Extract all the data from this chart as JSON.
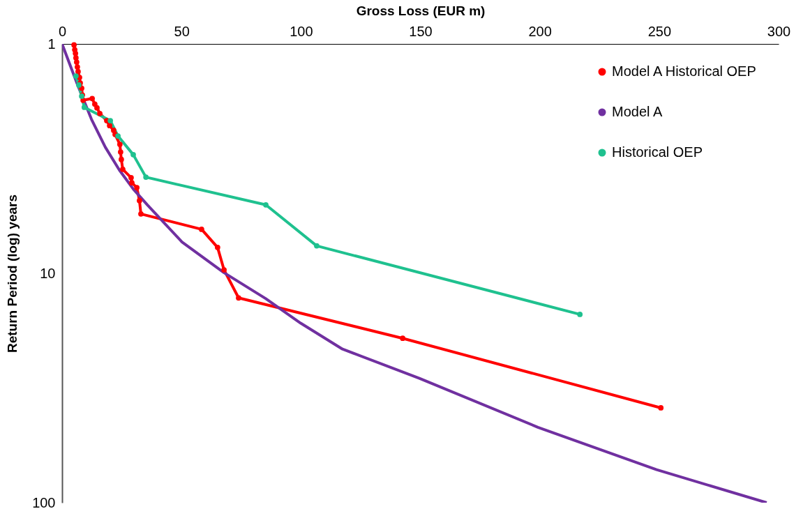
{
  "chart_data": {
    "type": "line",
    "xlabel": "Gross Loss (EUR m)",
    "ylabel": "Return Period (log) years",
    "xlim": [
      0,
      300
    ],
    "xticks": [
      0,
      50,
      100,
      150,
      200,
      250,
      300
    ],
    "ylim": [
      100,
      1
    ],
    "yticks": [
      1,
      10,
      100
    ],
    "log": "y",
    "grid": false,
    "legend": "top right",
    "line_style": "solid",
    "series": [
      {
        "name": "Model A Historical OEP",
        "color": "#ff0000",
        "marker": "circle",
        "x": [
          5.0,
          5.3,
          5.6,
          5.8,
          6.1,
          6.4,
          6.7,
          7.3,
          7.6,
          8.2,
          8.5,
          8.8,
          12.6,
          13.7,
          14.6,
          15.8,
          18.7,
          19.9,
          21.6,
          22.2,
          24.2,
          24.5,
          24.8,
          25.4,
          28.9,
          29.2,
          31.3,
          32.4,
          33.0,
          58.4,
          65.1,
          67.8,
          73.9,
          142.6,
          250.7
        ],
        "values": [
          1.01,
          1.06,
          1.1,
          1.15,
          1.2,
          1.26,
          1.32,
          1.4,
          1.48,
          1.56,
          1.67,
          1.76,
          1.73,
          1.83,
          1.9,
          2.01,
          2.16,
          2.27,
          2.38,
          2.48,
          2.74,
          2.96,
          3.19,
          3.52,
          3.83,
          4.03,
          4.23,
          4.82,
          5.51,
          6.43,
          7.71,
          9.66,
          12.8,
          19.2,
          38.6
        ]
      },
      {
        "name": "Model A",
        "color": "#7030a0",
        "marker": "none",
        "x": [
          0,
          6.4,
          12.3,
          18.1,
          24.0,
          29.8,
          35.7,
          50.2,
          67.8,
          85.3,
          99.9,
          117.4,
          149.6,
          199.2,
          248.9,
          295
        ],
        "values": [
          1,
          1.5,
          2.13,
          2.82,
          3.55,
          4.29,
          5.03,
          7.3,
          9.94,
          12.9,
          16.5,
          21.4,
          28.7,
          46.9,
          71.8,
          100
        ]
      },
      {
        "name": "Historical OEP",
        "color": "#1fc18f",
        "marker": "circle",
        "x": [
          5.8,
          7.0,
          8.2,
          9.3,
          20.2,
          23.4,
          29.8,
          35.1,
          85.3,
          106.6,
          216.8
        ],
        "values": [
          1.38,
          1.51,
          1.69,
          1.89,
          2.16,
          2.52,
          3.04,
          3.81,
          5.03,
          7.59,
          15.1
        ]
      }
    ]
  }
}
